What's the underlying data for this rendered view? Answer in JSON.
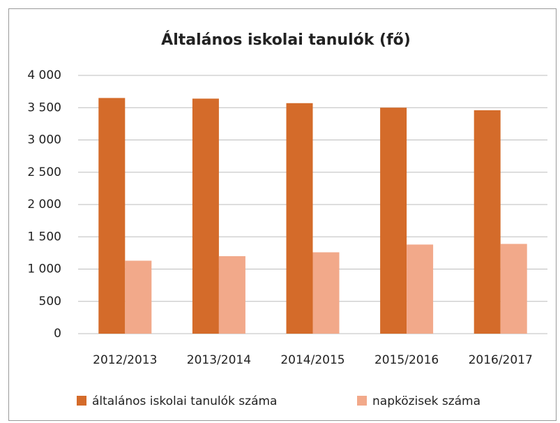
{
  "chart_data": {
    "type": "bar",
    "title": "Általános iskolai tanulók (fő)",
    "categories": [
      "2012/2013",
      "2013/2014",
      "2014/2015",
      "2015/2016",
      "2016/2017"
    ],
    "series": [
      {
        "name": "általános iskolai tanulók száma",
        "color": "#d46b2a",
        "values": [
          3650,
          3640,
          3570,
          3500,
          3460
        ]
      },
      {
        "name": "napközisek száma",
        "color": "#f2a98a",
        "values": [
          1130,
          1200,
          1260,
          1380,
          1390
        ]
      }
    ],
    "ylim": [
      0,
      4000
    ],
    "yticks": [
      0,
      500,
      {
        "value": 1000,
        "label": "1 000"
      },
      {
        "value": 1500,
        "label": "1 500"
      },
      {
        "value": 2000,
        "label": "2 000"
      },
      {
        "value": 2500,
        "label": "2 500"
      },
      {
        "value": 3000,
        "label": "3 000"
      },
      {
        "value": 3500,
        "label": "3 500"
      },
      {
        "value": 4000,
        "label": "4 000"
      }
    ],
    "grid": true,
    "legend": "bottom"
  }
}
